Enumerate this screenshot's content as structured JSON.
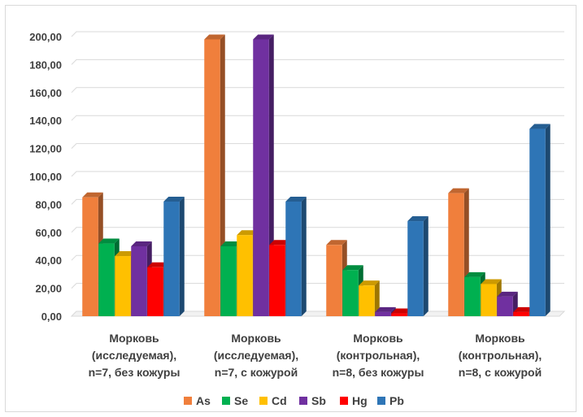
{
  "chart_data": {
    "type": "bar",
    "categories": [
      [
        "Морковь",
        "(исследуемая),",
        "n=7, без кожуры"
      ],
      [
        "Морковь",
        "(исследуемая),",
        "n=7, с кожурой"
      ],
      [
        "Морковь",
        "(контрольная),",
        "n=8, без кожуры"
      ],
      [
        "Морковь",
        "(контрольная),",
        "n=8, с кожурой"
      ]
    ],
    "series": [
      {
        "name": "As",
        "values": [
          85,
          198,
          51,
          88
        ],
        "color": "#f07f3c"
      },
      {
        "name": "Se",
        "values": [
          52,
          50,
          33,
          28
        ],
        "color": "#00b050"
      },
      {
        "name": "Cd",
        "values": [
          43,
          58,
          22,
          23
        ],
        "color": "#ffc000"
      },
      {
        "name": "Sb",
        "values": [
          50,
          198,
          3,
          14
        ],
        "color": "#7030a0"
      },
      {
        "name": "Hg",
        "values": [
          35,
          51,
          2,
          3
        ],
        "color": "#ff0000"
      },
      {
        "name": "Pb",
        "values": [
          82,
          82,
          68,
          134
        ],
        "color": "#2e75b6"
      }
    ],
    "ylim": [
      0,
      200
    ],
    "yticks": [
      "0,00",
      "20,00",
      "40,00",
      "60,00",
      "80,00",
      "100,00",
      "120,00",
      "140,00",
      "160,00",
      "180,00",
      "200,00"
    ],
    "title": "",
    "xlabel": "",
    "ylabel": "",
    "grid": true,
    "legend_position": "bottom",
    "style": "3d-clustered-column"
  }
}
